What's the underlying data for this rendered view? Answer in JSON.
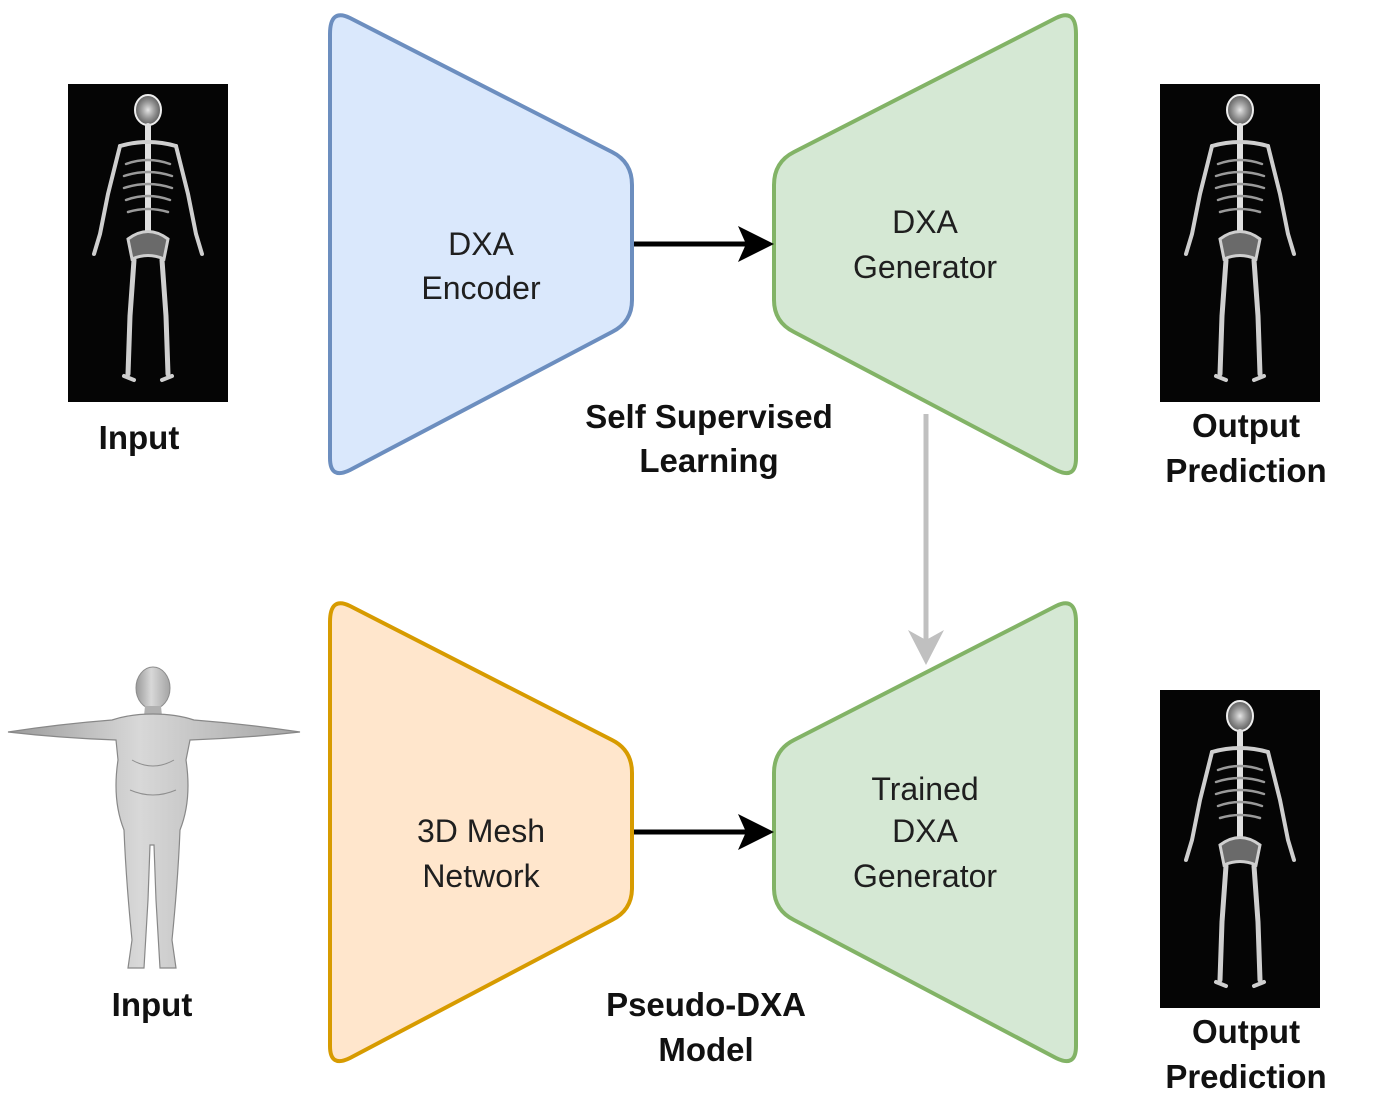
{
  "self_supervised": {
    "encoder": {
      "line1": "DXA",
      "line2": "Encoder",
      "fill": "#dae8fc",
      "stroke": "#6c8ebf"
    },
    "generator": {
      "line1": "DXA",
      "line2": "Generator",
      "fill": "#d5e8d4",
      "stroke": "#82b366"
    },
    "caption": {
      "line1": "Self Supervised",
      "line2": "Learning"
    },
    "input_label": "Input",
    "output_label": {
      "line1": "Output",
      "line2": "Prediction"
    }
  },
  "pseudo_dxa": {
    "encoder": {
      "line1": "3D Mesh",
      "line2": "Network",
      "fill": "#ffe6cc",
      "stroke": "#d79b00"
    },
    "generator": {
      "line1": "Trained",
      "line2": "DXA",
      "line3": "Generator",
      "fill": "#d5e8d4",
      "stroke": "#82b366"
    },
    "caption": {
      "line1": "Pseudo-DXA",
      "line2": "Model"
    },
    "input_label": "Input",
    "output_label": {
      "line1": "Output",
      "line2": "Prediction"
    }
  },
  "icons": {
    "xray_image": "dxa-skeleton-scan-icon",
    "mesh_image": "3d-body-mesh-icon"
  },
  "colors": {
    "arrow": "#000000",
    "transfer_arrow": "#c0c0c0"
  }
}
